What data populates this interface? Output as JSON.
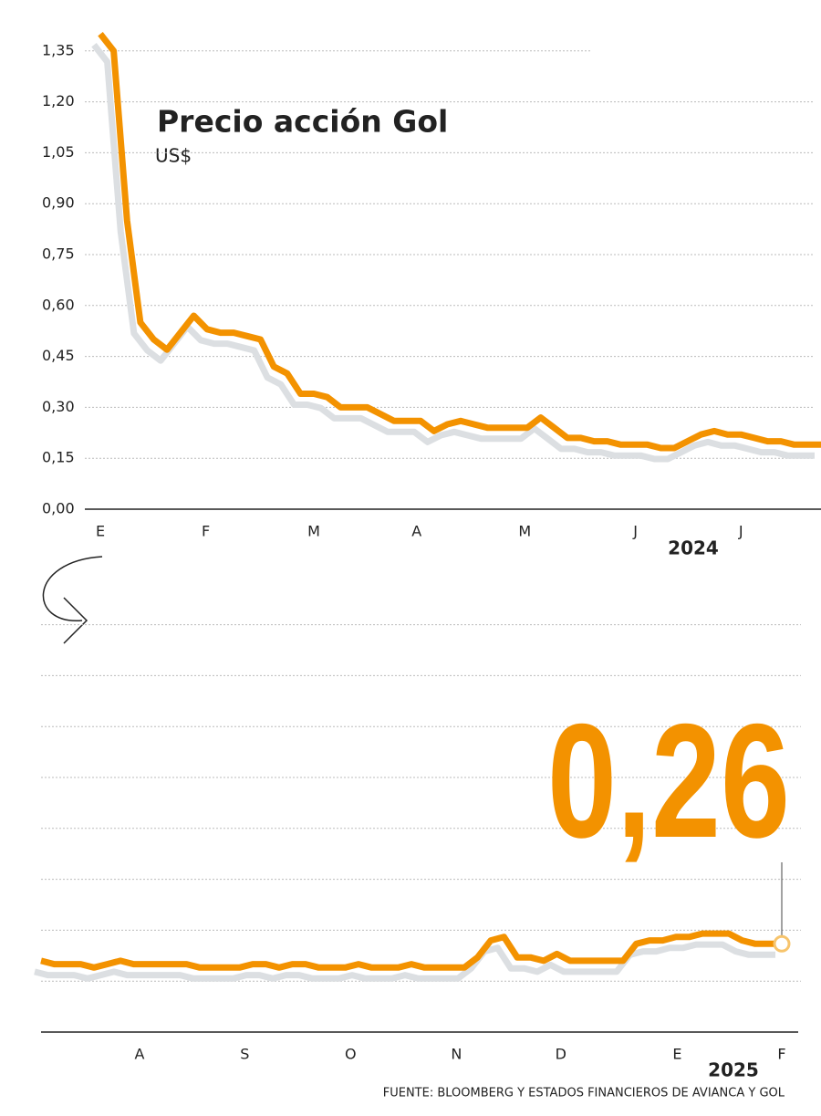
{
  "source": "FUENTE: BLOOMBERG Y ESTADOS FINANCIEROS DE AVIANCA Y GOL",
  "chart_data": [
    {
      "type": "line",
      "title": "Precio acción Gol",
      "subtitle": "US$",
      "year": "2024",
      "series": [
        {
          "color": "#f39200",
          "values": [
            1.4,
            1.35,
            0.85,
            0.55,
            0.5,
            0.47,
            0.52,
            0.57,
            0.53,
            0.52,
            0.52,
            0.51,
            0.5,
            0.42,
            0.4,
            0.34,
            0.34,
            0.33,
            0.3,
            0.3,
            0.3,
            0.28,
            0.26,
            0.26,
            0.26,
            0.23,
            0.25,
            0.26,
            0.25,
            0.24,
            0.24,
            0.24,
            0.24,
            0.27,
            0.24,
            0.21,
            0.21,
            0.2,
            0.2,
            0.19,
            0.19,
            0.19,
            0.18,
            0.18,
            0.2,
            0.22,
            0.23,
            0.22,
            0.22,
            0.21,
            0.2,
            0.2,
            0.19,
            0.19,
            0.19
          ]
        }
      ],
      "xlim": [
        0,
        54
      ],
      "xticks": [
        {
          "value": 0,
          "label": "E"
        },
        {
          "value": 7.9,
          "label": "F"
        },
        {
          "value": 16,
          "label": "M"
        },
        {
          "value": 23.7,
          "label": "A"
        },
        {
          "value": 31.8,
          "label": "M"
        },
        {
          "value": 40.1,
          "label": "J"
        },
        {
          "value": 48,
          "label": "J"
        }
      ],
      "ylim": [
        0,
        1.45
      ],
      "yticks": [
        {
          "value": 0,
          "label": "0,00"
        },
        {
          "value": 0.15,
          "label": "0,15"
        },
        {
          "value": 0.3,
          "label": "0,30"
        },
        {
          "value": 0.45,
          "label": "0,45"
        },
        {
          "value": 0.6,
          "label": "0,60"
        },
        {
          "value": 0.75,
          "label": "0,75"
        },
        {
          "value": 0.9,
          "label": "0,90"
        },
        {
          "value": 1.05,
          "label": "1,05"
        },
        {
          "value": 1.2,
          "label": "1,20"
        },
        {
          "value": 1.35,
          "label": "1,35"
        }
      ],
      "grid": true
    },
    {
      "type": "line",
      "year": "2025",
      "series": [
        {
          "color": "#f39200",
          "values": [
            0.21,
            0.2,
            0.2,
            0.2,
            0.19,
            0.2,
            0.21,
            0.2,
            0.2,
            0.2,
            0.2,
            0.2,
            0.19,
            0.19,
            0.19,
            0.19,
            0.2,
            0.2,
            0.19,
            0.2,
            0.2,
            0.19,
            0.19,
            0.19,
            0.2,
            0.19,
            0.19,
            0.19,
            0.2,
            0.19,
            0.19,
            0.19,
            0.19,
            0.22,
            0.27,
            0.28,
            0.22,
            0.22,
            0.21,
            0.23,
            0.21,
            0.21,
            0.21,
            0.21,
            0.21,
            0.26,
            0.27,
            0.27,
            0.28,
            0.28,
            0.29,
            0.29,
            0.29,
            0.27,
            0.26,
            0.26,
            0.26
          ],
          "value_labels": [
            null,
            null,
            null,
            null,
            null,
            null,
            null,
            null,
            null,
            null,
            null,
            null,
            null,
            null,
            null,
            null,
            null,
            null,
            null,
            null,
            null,
            null,
            null,
            null,
            null,
            null,
            null,
            null,
            null,
            null,
            null,
            null,
            null,
            null,
            null,
            null,
            null,
            null,
            null,
            null,
            null,
            null,
            null,
            null,
            null,
            null,
            null,
            null,
            null,
            null,
            null,
            null,
            null,
            null,
            null,
            null,
            "0,26"
          ]
        }
      ],
      "xlim": [
        0,
        56
      ],
      "xticks": [
        {
          "value": 7.45,
          "label": "A"
        },
        {
          "value": 15.4,
          "label": "S"
        },
        {
          "value": 23.4,
          "label": "O"
        },
        {
          "value": 31.4,
          "label": "N"
        },
        {
          "value": 39.3,
          "label": "D"
        },
        {
          "value": 48.1,
          "label": "E"
        },
        {
          "value": 56,
          "label": "F"
        }
      ],
      "ylim": [
        0,
        1.25
      ],
      "yticks": [
        0,
        0.15,
        0.3,
        0.45,
        0.6,
        0.75,
        0.9,
        1.05,
        1.2
      ],
      "show_ytick_labels": false,
      "grid": true
    }
  ]
}
